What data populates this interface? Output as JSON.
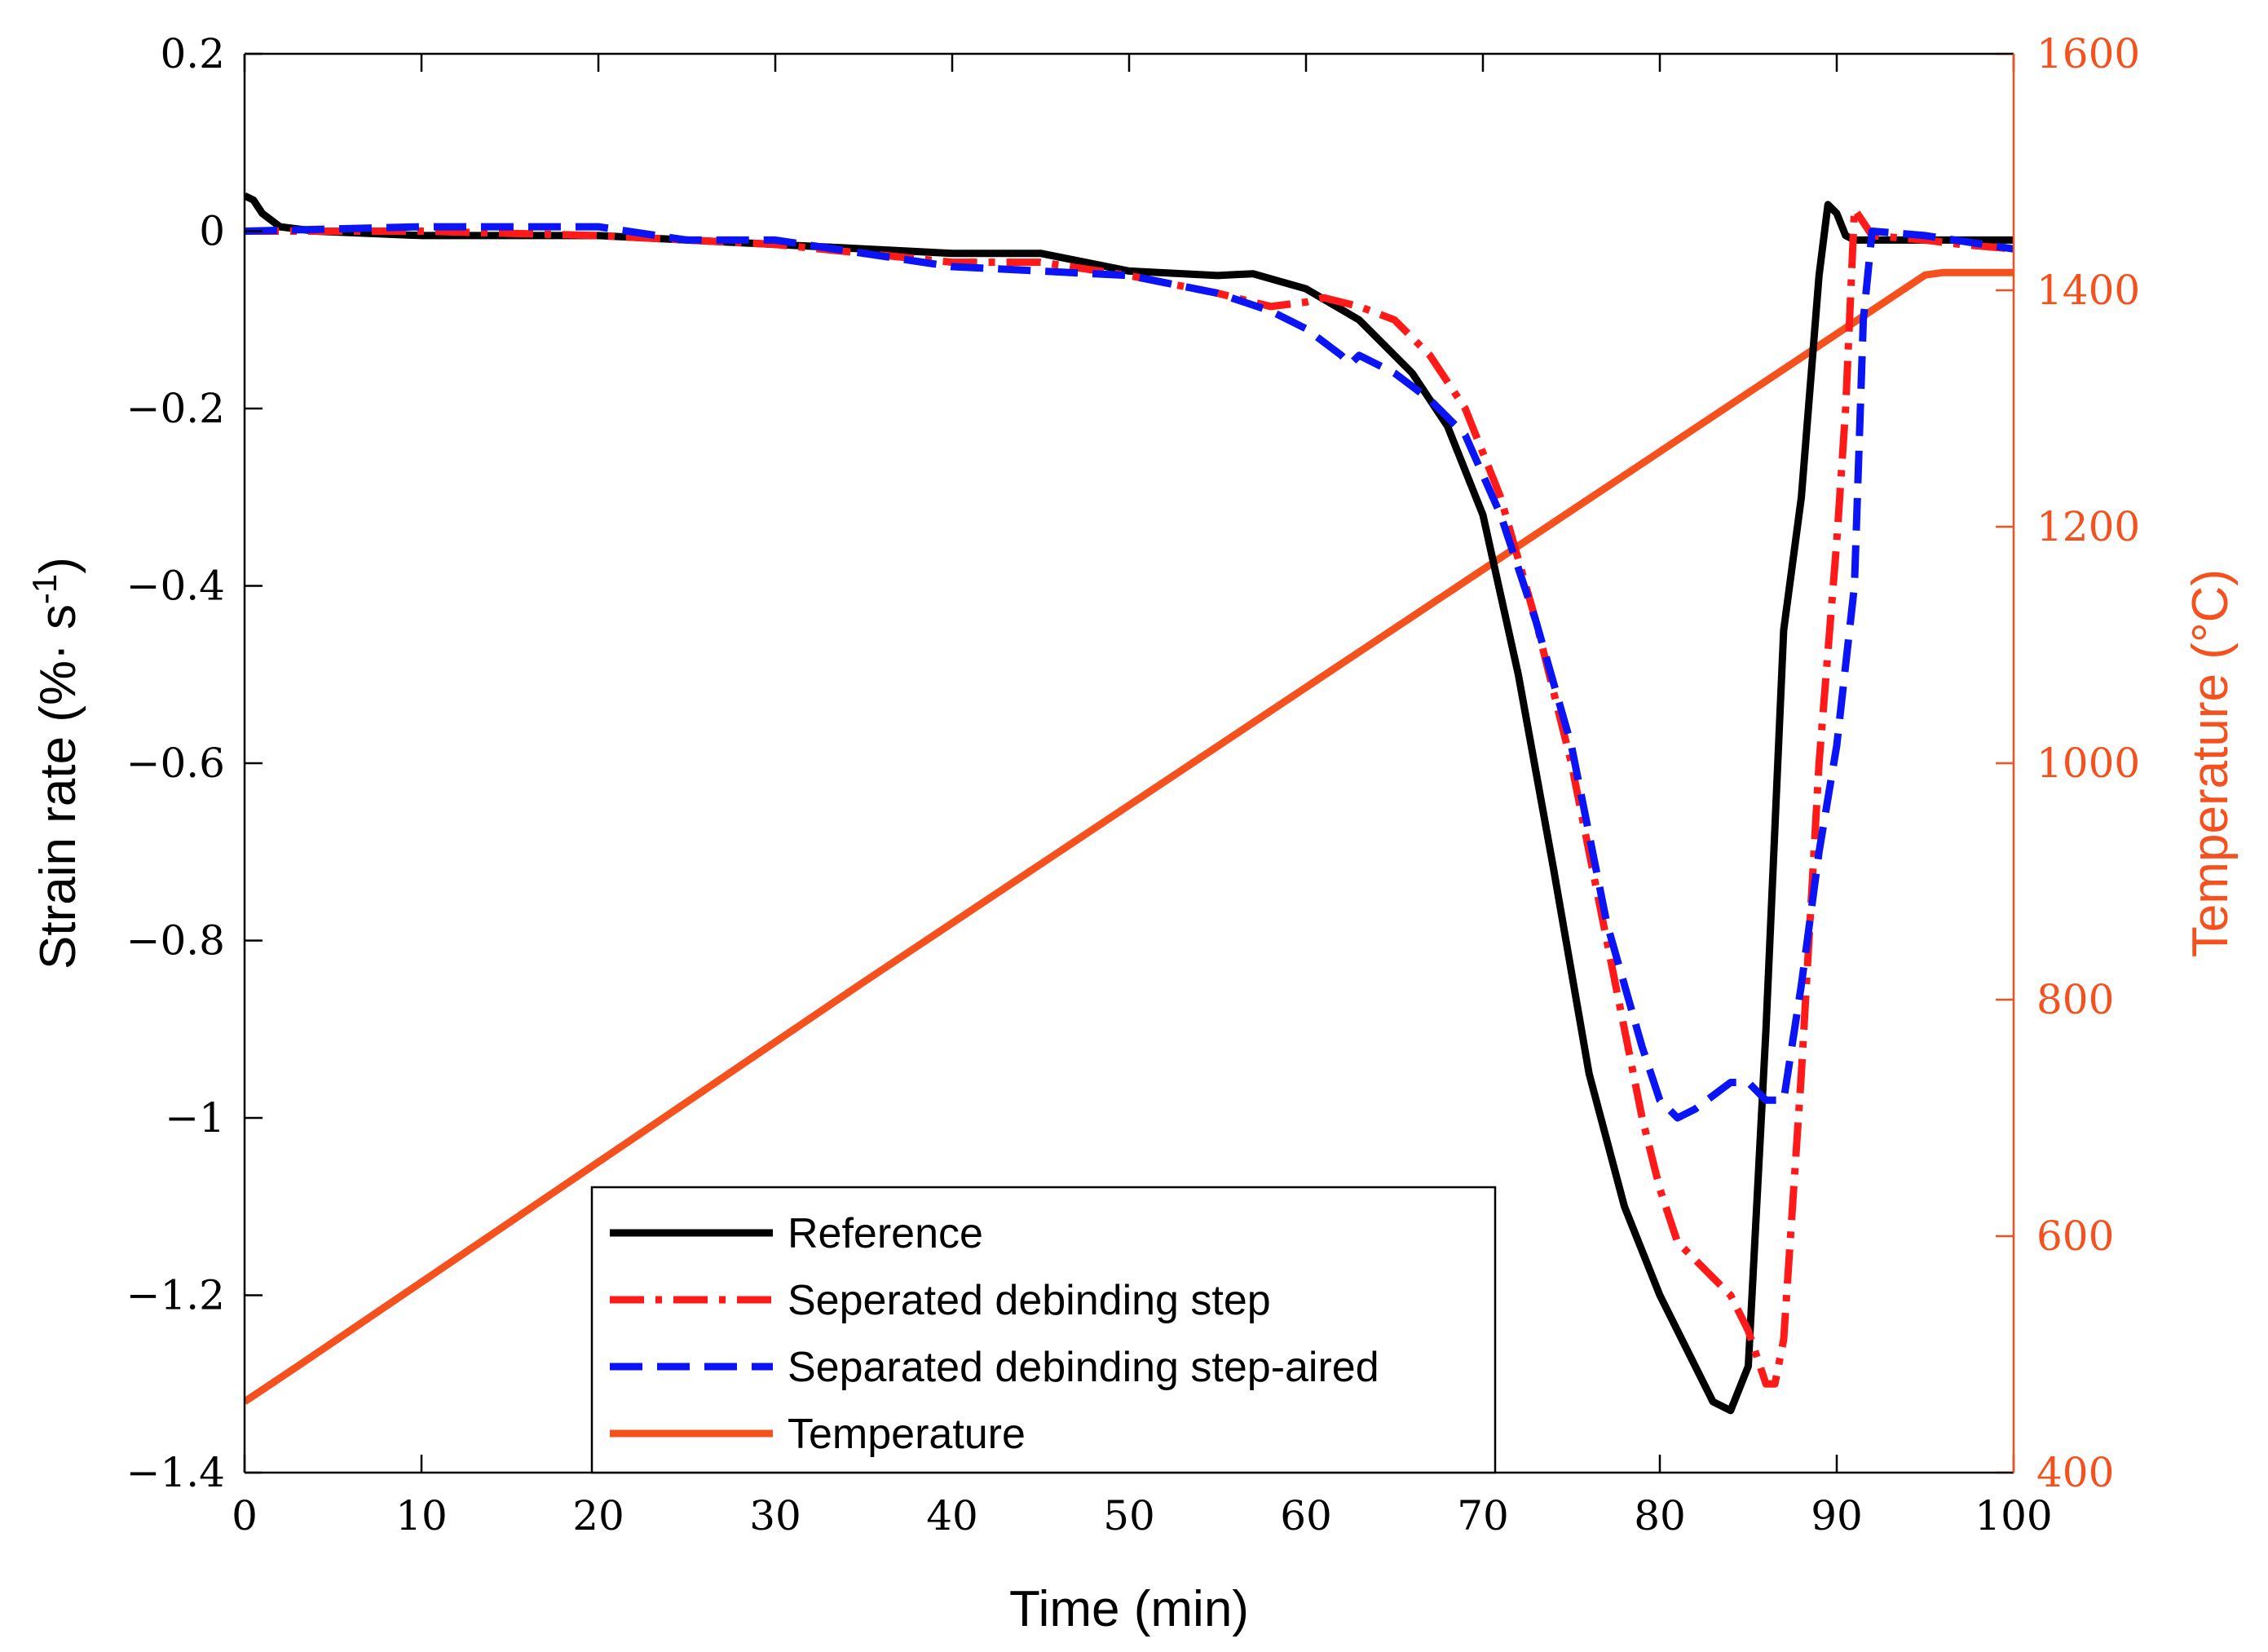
{
  "chart_data": {
    "type": "line",
    "title": "",
    "xlabel": "Time (min)",
    "ylabel_left": {
      "prefix": "Strain rate (%· s",
      "superscript": "-1",
      "suffix": ")"
    },
    "ylabel_right": "Temperature (°C)",
    "xlim": [
      0,
      100
    ],
    "ylim_left": [
      -1.4,
      0.2
    ],
    "ylim_right": [
      400,
      1600
    ],
    "x_ticks": [
      0,
      10,
      20,
      30,
      40,
      50,
      60,
      70,
      80,
      90,
      100
    ],
    "x_tick_labels": [
      "0",
      "10",
      "20",
      "30",
      "40",
      "50",
      "60",
      "70",
      "80",
      "90",
      "100"
    ],
    "y_left_ticks": [
      0.2,
      0,
      -0.2,
      -0.4,
      -0.6,
      -0.8,
      -1,
      -1.2,
      -1.4
    ],
    "y_left_tick_labels": [
      "0.2",
      "0",
      "−0.2",
      "−0.4",
      "−0.6",
      "−0.8",
      "−1",
      "−1.2",
      "−1.4"
    ],
    "y_right_ticks": [
      400,
      600,
      800,
      1000,
      1200,
      1400,
      1600
    ],
    "y_right_tick_labels": [
      "400",
      "600",
      "800",
      "1000",
      "1200",
      "1400",
      "1600"
    ],
    "legend_position": "bottom-center",
    "colors": {
      "axis_right": "#f4511e"
    },
    "series": [
      {
        "name": "Reference",
        "axis": "left",
        "color": "#000000",
        "style": "solid",
        "x": [
          0,
          0.5,
          1,
          2,
          4,
          10,
          20,
          30,
          40,
          45,
          50,
          55,
          57,
          60,
          63,
          66,
          68,
          70,
          72,
          74,
          76,
          78,
          80,
          81,
          82,
          83,
          84,
          85,
          86,
          87,
          88,
          89,
          89.5,
          90,
          90.5,
          91,
          95,
          100
        ],
        "y": [
          0.04,
          0.035,
          0.02,
          0.005,
          0.0,
          -0.005,
          -0.005,
          -0.015,
          -0.025,
          -0.025,
          -0.045,
          -0.05,
          -0.048,
          -0.065,
          -0.1,
          -0.16,
          -0.22,
          -0.32,
          -0.5,
          -0.72,
          -0.95,
          -1.1,
          -1.2,
          -1.24,
          -1.28,
          -1.32,
          -1.33,
          -1.28,
          -0.9,
          -0.45,
          -0.3,
          -0.05,
          0.03,
          0.02,
          -0.005,
          -0.01,
          -0.01,
          -0.01
        ]
      },
      {
        "name": "Seperated debinding step",
        "axis": "left",
        "color": "#ff1a1a",
        "style": "dashdot",
        "x": [
          0,
          10,
          20,
          30,
          40,
          45,
          50,
          55,
          58,
          60,
          61,
          63,
          65,
          67,
          69,
          71,
          73,
          75,
          77,
          79,
          80,
          81,
          82,
          83,
          84,
          85,
          86,
          86.5,
          87,
          88,
          89,
          90,
          90.5,
          91,
          92,
          95,
          97,
          100
        ],
        "y": [
          0.0,
          0.0,
          -0.005,
          -0.015,
          -0.035,
          -0.035,
          -0.05,
          -0.07,
          -0.085,
          -0.08,
          -0.075,
          -0.085,
          -0.1,
          -0.14,
          -0.2,
          -0.3,
          -0.44,
          -0.6,
          -0.8,
          -1.0,
          -1.08,
          -1.14,
          -1.16,
          -1.18,
          -1.2,
          -1.24,
          -1.3,
          -1.3,
          -1.25,
          -0.95,
          -0.6,
          -0.35,
          -0.2,
          0.025,
          -0.005,
          -0.01,
          -0.015,
          -0.02
        ]
      },
      {
        "name": "Separated debinding step-aired",
        "axis": "left",
        "color": "#0a14f5",
        "style": "dashed",
        "x": [
          0,
          10,
          20,
          25,
          30,
          40,
          45,
          50,
          55,
          58,
          60,
          62,
          62.5,
          63,
          65,
          67,
          69,
          71,
          73,
          75,
          77,
          79,
          80,
          81,
          82,
          84,
          85,
          86,
          87,
          88,
          89,
          90,
          91,
          91.5,
          92,
          95,
          100
        ],
        "y": [
          0.0,
          0.005,
          0.005,
          -0.01,
          -0.01,
          -0.04,
          -0.045,
          -0.05,
          -0.07,
          -0.09,
          -0.11,
          -0.14,
          -0.15,
          -0.14,
          -0.16,
          -0.19,
          -0.23,
          -0.32,
          -0.44,
          -0.58,
          -0.78,
          -0.92,
          -0.98,
          -1.0,
          -0.99,
          -0.96,
          -0.96,
          -0.98,
          -0.98,
          -0.85,
          -0.7,
          -0.58,
          -0.4,
          -0.1,
          0.0,
          -0.005,
          -0.02
        ]
      },
      {
        "name": "Temperature",
        "axis": "right",
        "color": "#f4511e",
        "style": "solid",
        "x": [
          0,
          3,
          35,
          95,
          96,
          100
        ],
        "y": [
          460,
          490,
          815,
          1413,
          1415,
          1415
        ]
      }
    ]
  }
}
